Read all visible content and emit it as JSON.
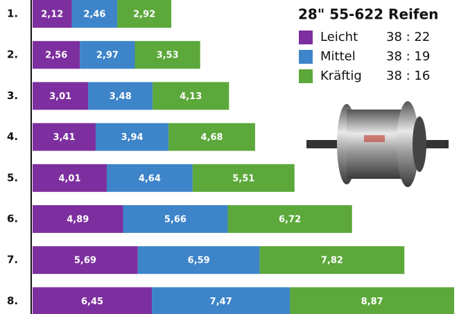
{
  "chart_data": {
    "type": "stacked-bar-horizontal",
    "title": "28\" 55-622 Reifen",
    "categories": [
      "1.",
      "2.",
      "3.",
      "4.",
      "5.",
      "6.",
      "7.",
      "8."
    ],
    "series": [
      {
        "name": "Leicht",
        "ratio": "38 : 22",
        "color": "#7d2f9f",
        "values": [
          2.12,
          2.56,
          3.01,
          3.41,
          4.01,
          4.89,
          5.69,
          6.45
        ],
        "value_labels": [
          "2,12",
          "2,56",
          "3,01",
          "3,41",
          "4,01",
          "4,89",
          "5,69",
          "6,45"
        ]
      },
      {
        "name": "Mittel",
        "ratio": "38 : 19",
        "color": "#3d84c9",
        "values": [
          2.46,
          2.97,
          3.48,
          3.94,
          4.64,
          5.66,
          6.59,
          7.47
        ],
        "value_labels": [
          "2,46",
          "2,97",
          "3,48",
          "3,94",
          "4,64",
          "5,66",
          "6,59",
          "7,47"
        ]
      },
      {
        "name": "Kräftig",
        "ratio": "38 : 16",
        "color": "#5ca83b",
        "values": [
          2.92,
          3.53,
          4.13,
          4.68,
          5.51,
          6.72,
          7.82,
          8.87
        ],
        "value_labels": [
          "2,92",
          "3,53",
          "4,13",
          "4,68",
          "5,51",
          "6,72",
          "7,82",
          "8,87"
        ]
      }
    ]
  }
}
